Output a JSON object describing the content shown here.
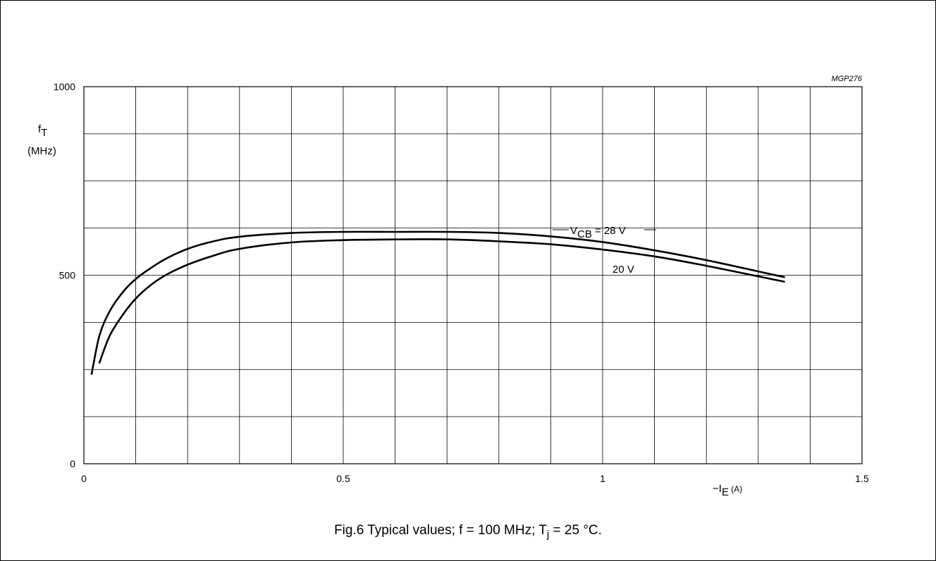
{
  "figure": {
    "code": "MGP276",
    "caption": {
      "prefix": "Fig.6  Typical values; f = 100 MHz; T",
      "sub": "j",
      "suffix": " = 25 °C."
    }
  },
  "chart_data": {
    "type": "line",
    "title": "",
    "xlabel": {
      "prefix": "−I",
      "sub": "E",
      "unit": " (A)"
    },
    "ylabel": {
      "symbol": "f",
      "sub": "T",
      "unit": "(MHz)"
    },
    "xlim": [
      0,
      1.5
    ],
    "ylim": [
      0,
      1000
    ],
    "x_ticks": [
      0,
      0.5,
      1,
      1.5
    ],
    "x_tick_labels": [
      "0",
      "0.5",
      "1",
      "1.5"
    ],
    "y_ticks": [
      0,
      500,
      1000
    ],
    "y_tick_labels": [
      "0",
      "500",
      "1000"
    ],
    "x_grid_step": 0.1,
    "y_grid_step": 125,
    "grid": true,
    "series": [
      {
        "name": "V_CB = 28 V",
        "label": {
          "prefix": "V",
          "sub": "CB",
          "suffix": " = 28 V"
        },
        "x": [
          0.015,
          0.03,
          0.05,
          0.075,
          0.1,
          0.13,
          0.16,
          0.2,
          0.25,
          0.3,
          0.4,
          0.5,
          0.6,
          0.7,
          0.8,
          0.9,
          1.0,
          1.1,
          1.2,
          1.3,
          1.35
        ],
        "y": [
          238,
          340,
          405,
          455,
          490,
          520,
          545,
          570,
          590,
          602,
          612,
          615,
          615,
          615,
          612,
          603,
          588,
          566,
          540,
          510,
          495
        ]
      },
      {
        "name": "20 V",
        "label": {
          "prefix": "20 V",
          "sub": "",
          "suffix": ""
        },
        "x": [
          0.03,
          0.05,
          0.075,
          0.1,
          0.13,
          0.16,
          0.2,
          0.25,
          0.3,
          0.4,
          0.5,
          0.6,
          0.7,
          0.8,
          0.9,
          1.0,
          1.1,
          1.2,
          1.3,
          1.35
        ],
        "y": [
          268,
          340,
          395,
          438,
          475,
          502,
          528,
          552,
          570,
          587,
          593,
          595,
          595,
          590,
          582,
          568,
          550,
          525,
          497,
          483
        ]
      }
    ]
  }
}
